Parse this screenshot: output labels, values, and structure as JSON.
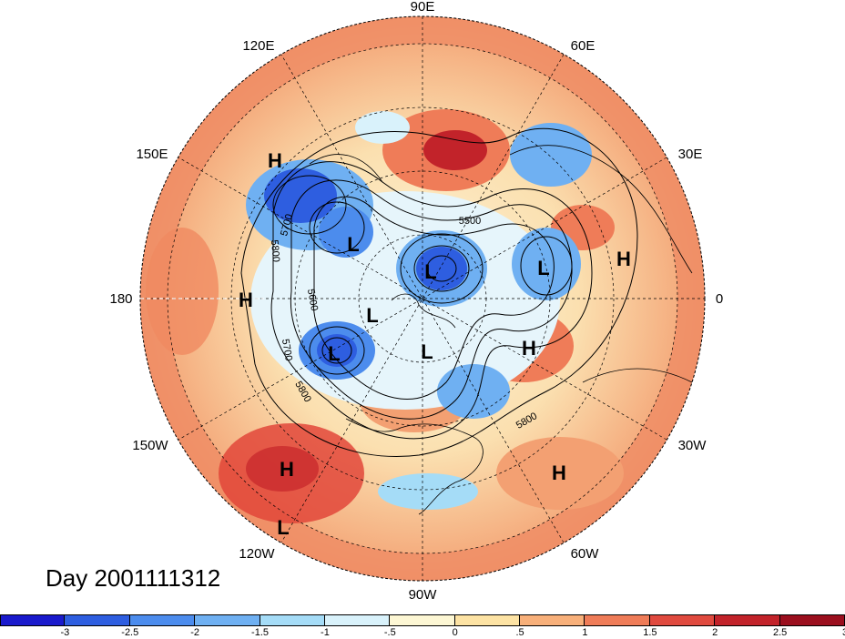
{
  "map": {
    "longitude_labels": {
      "n": "90E",
      "nne": "60E",
      "ene": "30E",
      "e": "0",
      "ese": "30W",
      "sse": "60W",
      "s": "90W",
      "ssw": "120W",
      "wsw": "150W",
      "w": "180",
      "wnw": "150E",
      "nnw": "120E"
    },
    "pressure_centers": [
      {
        "label": "H",
        "id": "h-150e"
      },
      {
        "label": "L",
        "id": "l-west-pacific"
      },
      {
        "label": "L",
        "id": "l-arctic"
      },
      {
        "label": "L",
        "id": "l-europe"
      },
      {
        "label": "H",
        "id": "h-east"
      },
      {
        "label": "H",
        "id": "h-180"
      },
      {
        "label": "L",
        "id": "l-bering"
      },
      {
        "label": "L",
        "id": "l-alaska"
      },
      {
        "label": "L",
        "id": "l-canada"
      },
      {
        "label": "H",
        "id": "h-atlantic"
      },
      {
        "label": "H",
        "id": "h-east-pacific"
      },
      {
        "label": "H",
        "id": "h-mid-atlantic"
      },
      {
        "label": "L",
        "id": "l-subtropical-pacific"
      }
    ],
    "contour_labels": [
      "5700",
      "5500",
      "5800",
      "5600",
      "5700",
      "5800",
      "5800"
    ]
  },
  "date_label": "Day 2001111312",
  "colorbar": {
    "colors": [
      "#1a1acc",
      "#2e5ee0",
      "#4c8ced",
      "#6fb0f2",
      "#a5dcf7",
      "#d9f2fb",
      "#fdf7d4",
      "#fde3a4",
      "#f8b07a",
      "#ef7c58",
      "#e04a3f",
      "#c2232a",
      "#9b0f1e"
    ],
    "ticks": [
      "-3",
      "-2.5",
      "-2",
      "-1.5",
      "-1",
      "-.5",
      "0",
      ".5",
      "1",
      "1.5",
      "2",
      "2.5",
      "3"
    ]
  }
}
